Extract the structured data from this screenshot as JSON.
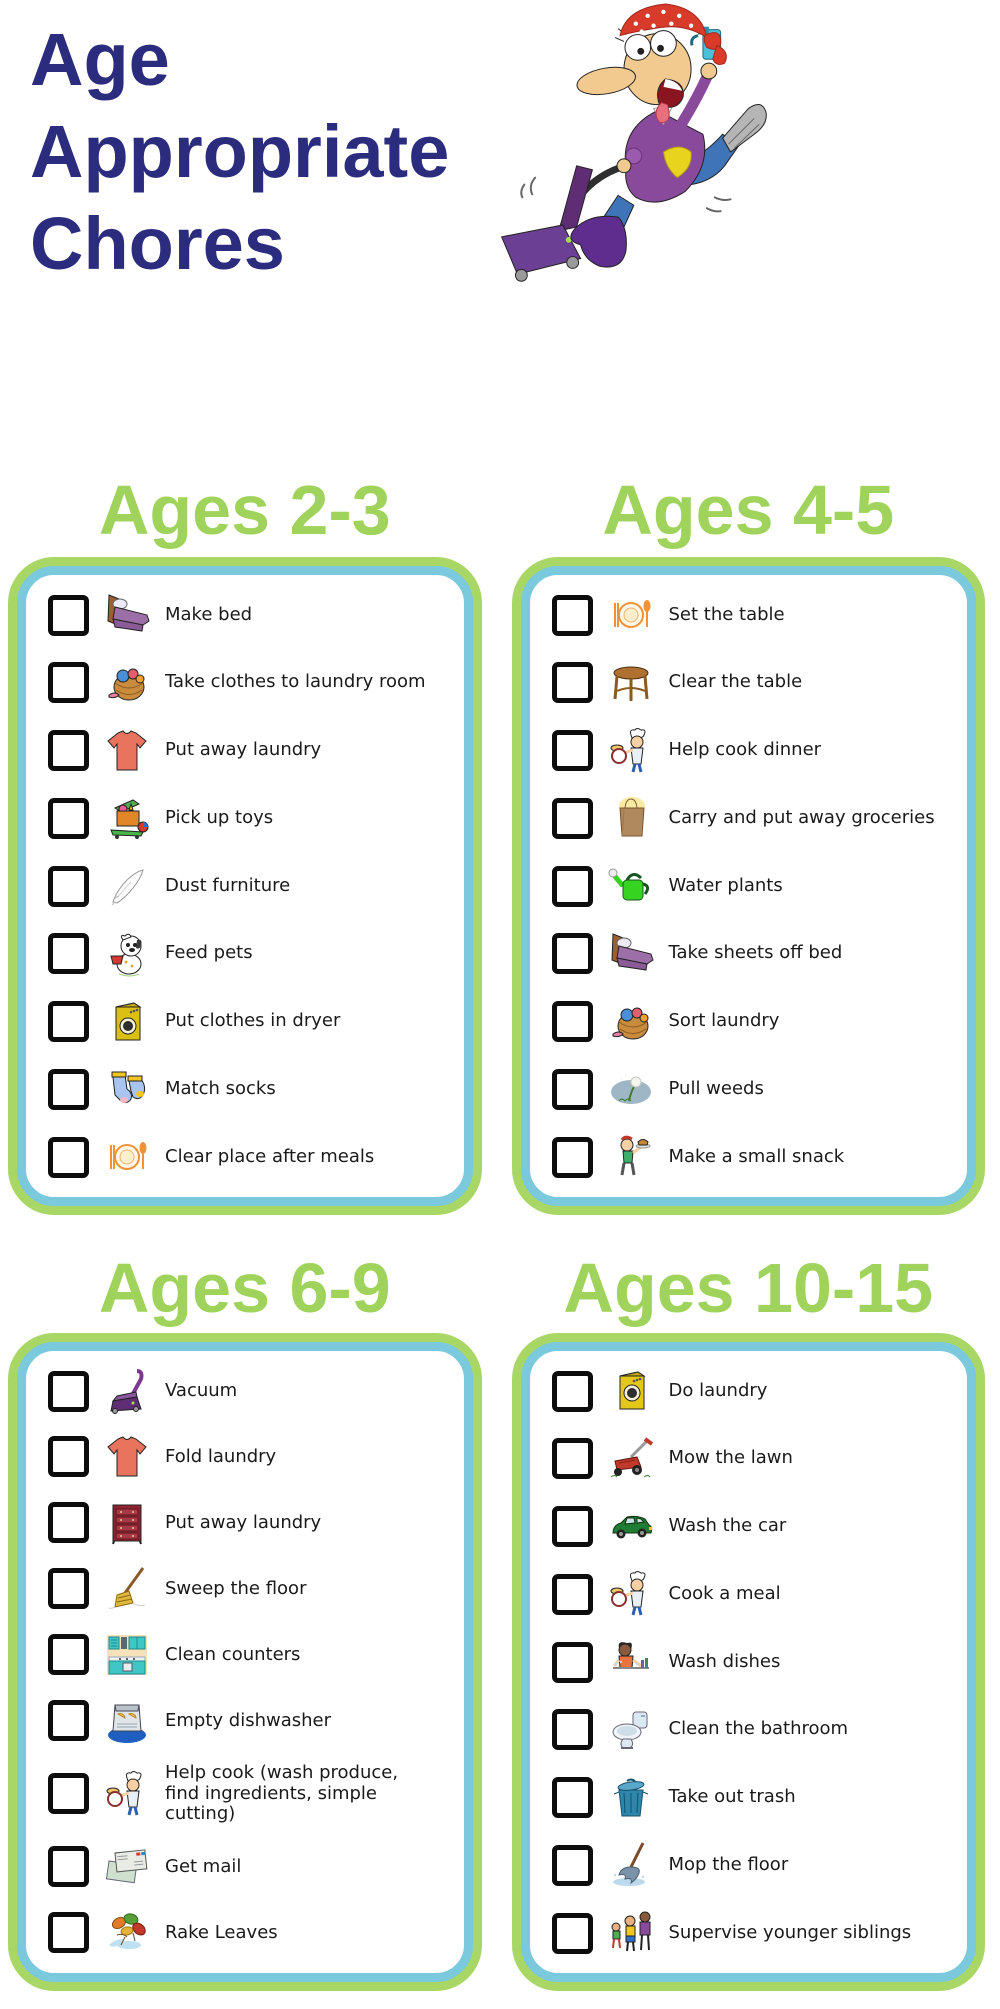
{
  "page": {
    "title_lines": [
      "Age",
      "Appropriate",
      "Chores"
    ],
    "hero_icon": "cleaning-woman-vacuuming-cartoon"
  },
  "colors": {
    "title_navy": "#2b2c7e",
    "heading_green": "#9fd35c",
    "card_border_green": "#a8d766",
    "card_border_blue": "#7ac9dc",
    "text": "#1a1a1a"
  },
  "sections": [
    {
      "title": "Ages 2-3",
      "items": [
        {
          "label": "Make bed",
          "icon": "bed",
          "checked": false
        },
        {
          "label": "Take clothes to laundry room",
          "icon": "laundry-basket",
          "checked": false
        },
        {
          "label": "Put away laundry",
          "icon": "tshirt",
          "checked": false
        },
        {
          "label": "Pick up toys",
          "icon": "toy-box",
          "checked": false
        },
        {
          "label": "Dust furniture",
          "icon": "feather-duster",
          "checked": false
        },
        {
          "label": "Feed pets",
          "icon": "dog",
          "checked": false
        },
        {
          "label": "Put clothes in dryer",
          "icon": "dryer",
          "checked": false
        },
        {
          "label": "Match socks",
          "icon": "socks",
          "checked": false
        },
        {
          "label": "Clear place after meals",
          "icon": "place-setting",
          "checked": false
        }
      ]
    },
    {
      "title": "Ages 4-5",
      "items": [
        {
          "label": "Set the table",
          "icon": "place-setting",
          "checked": false
        },
        {
          "label": "Clear the table",
          "icon": "table",
          "checked": false
        },
        {
          "label": "Help cook dinner",
          "icon": "chef",
          "checked": false
        },
        {
          "label": "Carry and put away groceries",
          "icon": "grocery-bag",
          "checked": false
        },
        {
          "label": "Water plants",
          "icon": "watering-can",
          "checked": false
        },
        {
          "label": "Take sheets off bed",
          "icon": "bed",
          "checked": false
        },
        {
          "label": "Sort laundry",
          "icon": "laundry-basket",
          "checked": false
        },
        {
          "label": "Pull weeds",
          "icon": "weeds",
          "checked": false
        },
        {
          "label": "Make a small snack",
          "icon": "snack",
          "checked": false
        }
      ]
    },
    {
      "title": "Ages 6-9",
      "items": [
        {
          "label": "Vacuum",
          "icon": "vacuum",
          "checked": false
        },
        {
          "label": "Fold laundry",
          "icon": "tshirt",
          "checked": false
        },
        {
          "label": "Put away laundry",
          "icon": "dresser",
          "checked": false
        },
        {
          "label": "Sweep the floor",
          "icon": "broom",
          "checked": false
        },
        {
          "label": "Clean counters",
          "icon": "kitchen-counter",
          "checked": false
        },
        {
          "label": "Empty dishwasher",
          "icon": "dishwasher",
          "checked": false
        },
        {
          "label": "Help cook (wash produce,\nfind ingredients, simple\ncutting)",
          "icon": "chef",
          "checked": false
        },
        {
          "label": "Get mail",
          "icon": "mail",
          "checked": false
        },
        {
          "label": "Rake Leaves",
          "icon": "leaves",
          "checked": false
        }
      ]
    },
    {
      "title": "Ages 10-15",
      "items": [
        {
          "label": "Do laundry",
          "icon": "washing-machine",
          "checked": false
        },
        {
          "label": "Mow the lawn",
          "icon": "lawn-mower",
          "checked": false
        },
        {
          "label": "Wash the car",
          "icon": "car",
          "checked": false
        },
        {
          "label": "Cook a meal",
          "icon": "chef",
          "checked": false
        },
        {
          "label": "Wash dishes",
          "icon": "wash-dishes",
          "checked": false
        },
        {
          "label": "Clean the bathroom",
          "icon": "toilet",
          "checked": false
        },
        {
          "label": "Take out trash",
          "icon": "trash-can",
          "checked": false
        },
        {
          "label": "Mop the floor",
          "icon": "mop",
          "checked": false
        },
        {
          "label": "Supervise younger siblings",
          "icon": "siblings",
          "checked": false
        }
      ]
    }
  ]
}
